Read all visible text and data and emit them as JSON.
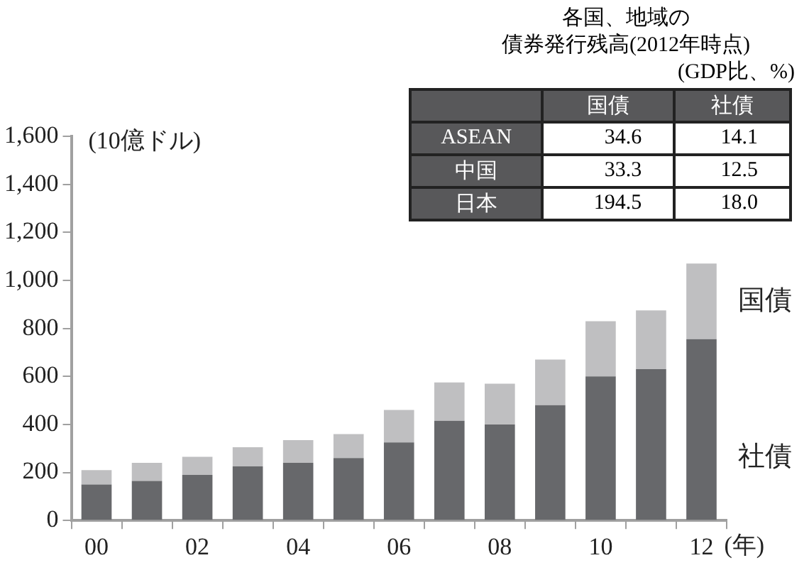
{
  "chart_data": [
    {
      "type": "bar",
      "stacked": true,
      "ylabel": "(10億ドル)",
      "xlabel": "(年)",
      "categories": [
        "00",
        null,
        "02",
        null,
        "04",
        null,
        "06",
        null,
        "08",
        null,
        "10",
        null,
        "12"
      ],
      "series": [
        {
          "name": "社債",
          "color": "#67686b",
          "values": [
            150,
            165,
            190,
            225,
            240,
            260,
            325,
            415,
            400,
            480,
            600,
            630,
            755
          ]
        },
        {
          "name": "国債",
          "color": "#bfbfc1",
          "values": [
            60,
            75,
            75,
            80,
            95,
            100,
            135,
            160,
            170,
            190,
            230,
            245,
            315
          ]
        }
      ],
      "ylim": [
        0,
        1600
      ],
      "yticks": [
        0,
        200,
        400,
        600,
        800,
        {
          "value": 1000,
          "label": "1,000"
        },
        {
          "value": 1200,
          "label": "1,200"
        },
        {
          "value": 1400,
          "label": "1,400"
        },
        {
          "value": 1600,
          "label": "1,600"
        }
      ],
      "grid": false,
      "legend": false
    },
    {
      "type": "other",
      "title": "各国、地域の",
      "subtitle": "債券発行残高(2012年時点)",
      "annotations": [
        "(GDP比、%)"
      ],
      "categories": [
        "ASEAN",
        "中国",
        "日本"
      ],
      "series": [
        {
          "name": "国債",
          "values": [
            34.6,
            33.3,
            194.5
          ],
          "value_labels": [
            "34.6",
            "33.3",
            "194.5"
          ]
        },
        {
          "name": "社債",
          "values": [
            14.1,
            12.5,
            18.0
          ],
          "value_labels": [
            "14.1",
            "12.5",
            "18.0"
          ]
        }
      ]
    }
  ]
}
